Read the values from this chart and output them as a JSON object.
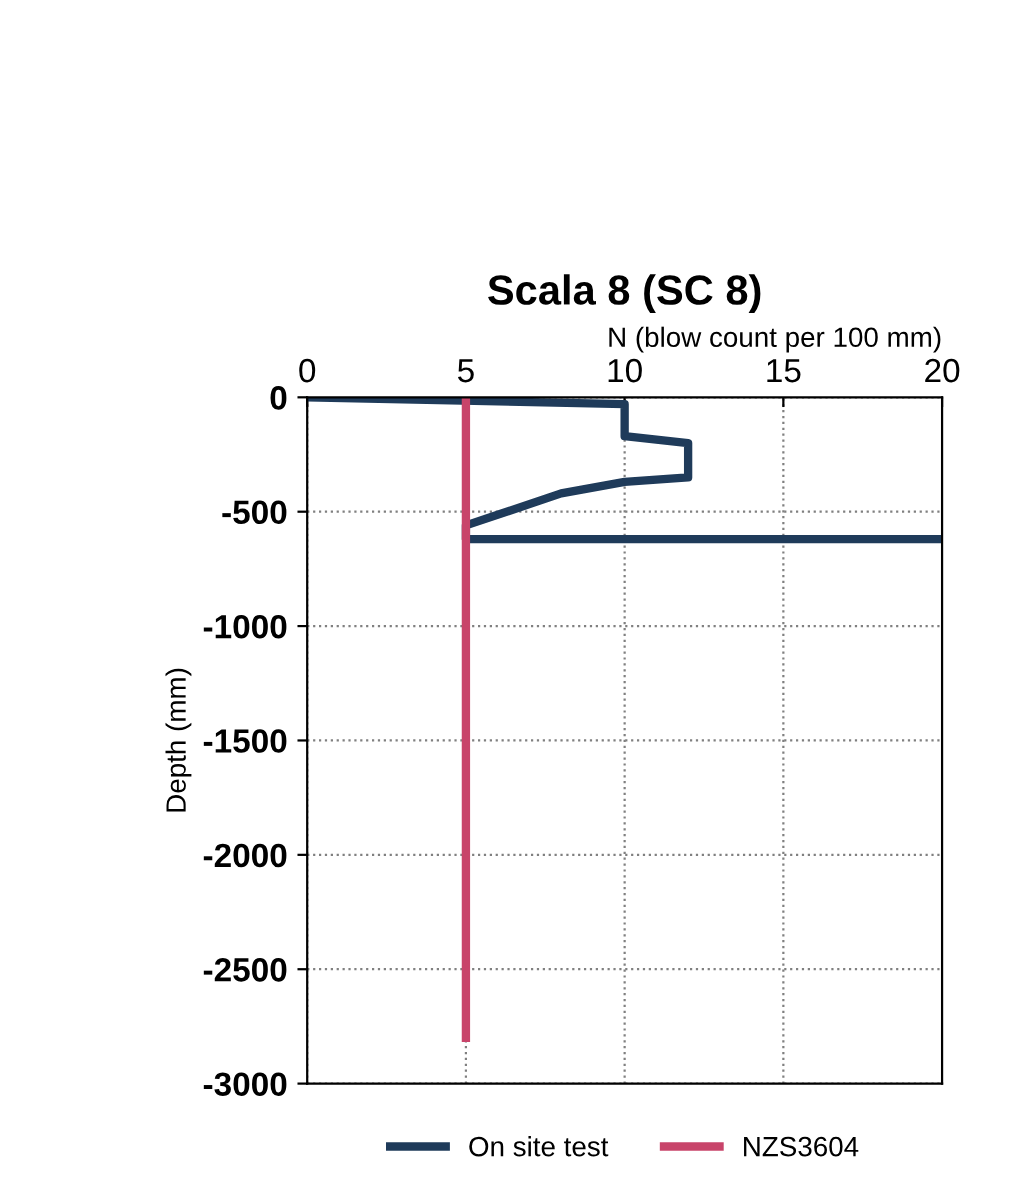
{
  "chart_data": {
    "type": "line",
    "title": "Scala 8 (SC 8)",
    "xlabel": "N (blow count per 100 mm)",
    "ylabel": "Depth (mm)",
    "xlim": [
      0,
      20
    ],
    "xticks": [
      0,
      5,
      10,
      15,
      20
    ],
    "ylim": [
      -3000,
      0
    ],
    "yticks": [
      0,
      -500,
      -1000,
      -1500,
      -2000,
      -2500,
      -3000
    ],
    "grid": true,
    "legend": "bottom",
    "marker": "none",
    "line_style": "solid",
    "series": [
      {
        "name": "On site test",
        "color": "#1f3b5a",
        "x": [
          0,
          10,
          10,
          12,
          12,
          10,
          8,
          5,
          5,
          20
        ],
        "values": [
          0,
          -30,
          -170,
          -200,
          -350,
          -370,
          -420,
          -560,
          -620,
          -620
        ]
      },
      {
        "name": "NZS3604",
        "color": "#c8446a",
        "x": [
          5,
          5
        ],
        "values": [
          0,
          -2800
        ]
      }
    ]
  }
}
